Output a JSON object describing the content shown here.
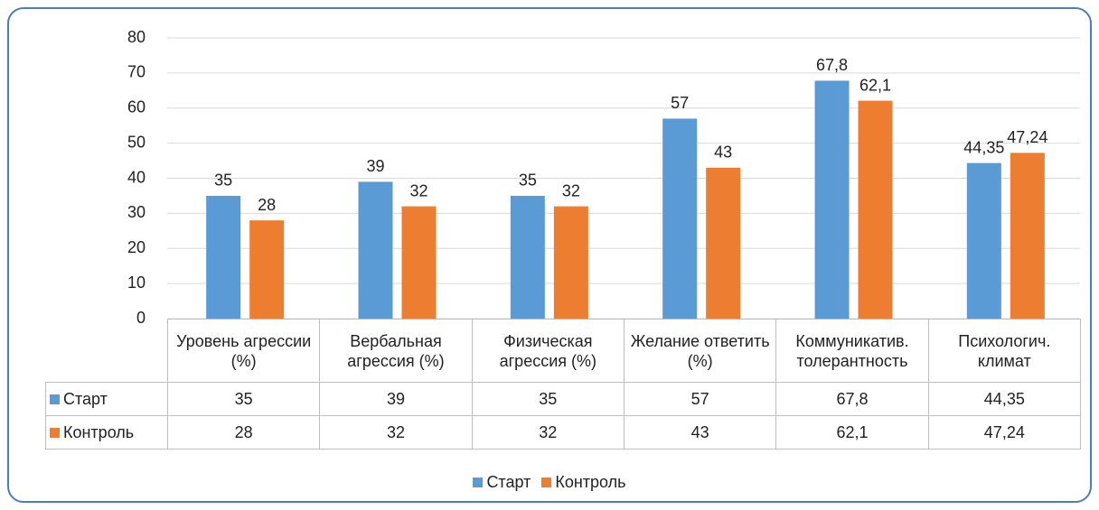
{
  "chart_data": {
    "type": "bar",
    "categories": [
      "Уровень агрессии (%)",
      "Вербальная агрессия (%)",
      "Физическая агрессия (%)",
      "Желание ответить (%)",
      "Коммуникатив. толерантность",
      "Психологич. климат"
    ],
    "series": [
      {
        "name": "Старт",
        "color": "#5b9bd5",
        "values": [
          35,
          39,
          35,
          57,
          67.8,
          44.35
        ],
        "value_labels": [
          "35",
          "39",
          "35",
          "57",
          "67,8",
          "44,35"
        ]
      },
      {
        "name": "Контроль",
        "color": "#ed7d31",
        "values": [
          28,
          32,
          32,
          43,
          62.1,
          47.24
        ],
        "value_labels": [
          "28",
          "32",
          "32",
          "43",
          "62,1",
          "47,24"
        ]
      }
    ],
    "ylim": [
      0,
      80
    ],
    "yticks": [
      0,
      10,
      20,
      30,
      40,
      50,
      60,
      70,
      80
    ],
    "grid": true,
    "legend": "bottom"
  }
}
